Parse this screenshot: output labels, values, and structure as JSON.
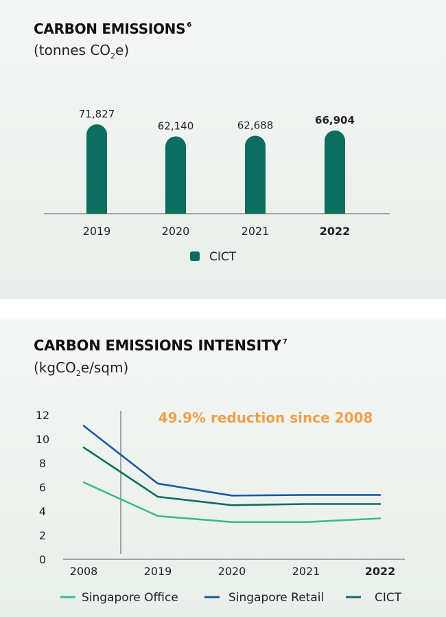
{
  "top_chart": {
    "title": "CARBON EMISSIONS",
    "title_sup": "6",
    "subtitle_pre": "(tonnes CO",
    "subtitle_sub": "2",
    "subtitle_post": "e)"
  },
  "bottom_chart": {
    "title": "CARBON EMISSIONS INTENSITY",
    "title_sup": "7",
    "subtitle_pre": "(kgCO",
    "subtitle_sub": "2",
    "subtitle_post": "e/sqm)",
    "annotation": "49.9% reduction since 2008"
  },
  "colors": {
    "cict_green": "#0b6e5e",
    "singapore_office": "#3dbb82",
    "singapore_retail": "#1a5b9e",
    "annotation_orange": "#f0a04b",
    "axis": "#555555"
  },
  "chart_data": [
    {
      "type": "bar",
      "categories": [
        "2019",
        "2020",
        "2021",
        "2022"
      ],
      "bold_categories": [
        "2022"
      ],
      "series": [
        {
          "name": "CICT",
          "values": [
            71827,
            62140,
            62688,
            66904
          ]
        }
      ],
      "value_labels": [
        "71,827",
        "62,140",
        "62,688",
        "66,904"
      ],
      "legend": [
        "CICT"
      ],
      "legend_position": "bottom",
      "grid": false
    },
    {
      "type": "line",
      "categories": [
        "2008",
        "2019",
        "2020",
        "2021",
        "2022"
      ],
      "bold_categories": [
        "2022"
      ],
      "series": [
        {
          "name": "Singapore Office",
          "values": [
            6.4,
            3.6,
            3.1,
            3.1,
            3.4
          ]
        },
        {
          "name": "Singapore Retail",
          "values": [
            11.1,
            6.3,
            5.3,
            5.35,
            5.35
          ]
        },
        {
          "name": "CICT",
          "values": [
            9.3,
            5.2,
            4.5,
            4.6,
            4.6
          ]
        }
      ],
      "ylim": [
        0,
        12
      ],
      "yticks": [
        "0",
        "2",
        "4",
        "6",
        "8",
        "10",
        "12"
      ],
      "legend": [
        "Singapore Office",
        "Singapore Retail",
        "CICT"
      ],
      "legend_position": "bottom",
      "grid": false
    }
  ]
}
